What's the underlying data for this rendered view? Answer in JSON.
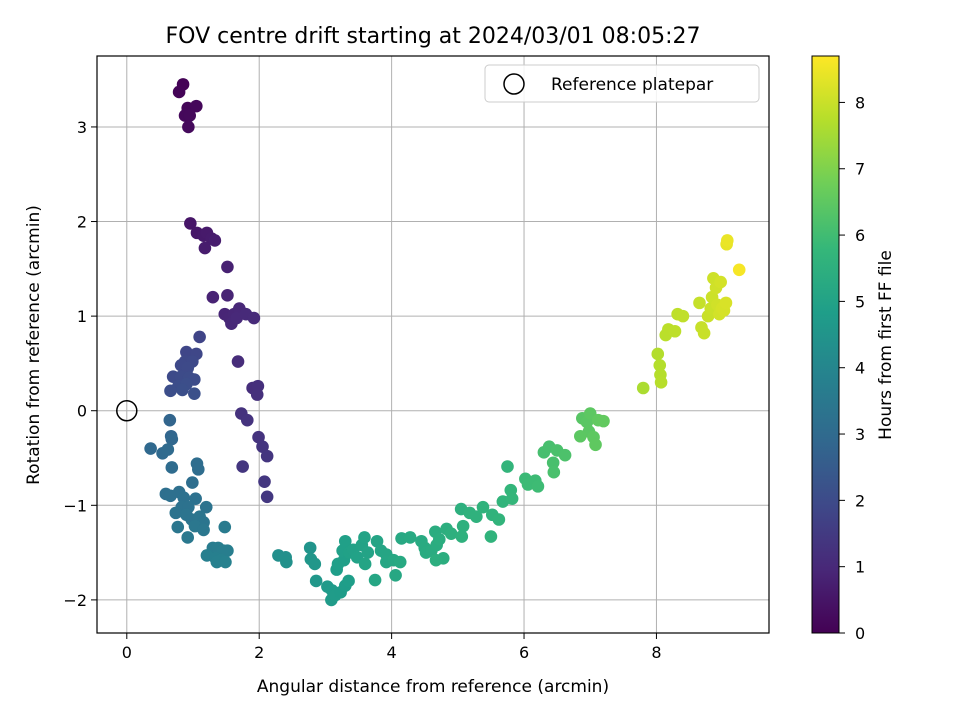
{
  "chart_data": {
    "type": "scatter",
    "title": "FOV centre drift starting at 2024/03/01 08:05:27",
    "xlabel": "Angular distance from reference (arcmin)",
    "ylabel": "Rotation from reference (arcmin)",
    "xlim": [
      -0.45,
      9.7
    ],
    "ylim": [
      -2.35,
      3.75
    ],
    "xticks": [
      "0",
      "2",
      "4",
      "6",
      "8"
    ],
    "xtick_values": [
      0,
      2,
      4,
      6,
      8
    ],
    "yticks": [
      "−2",
      "−1",
      "0",
      "1",
      "2",
      "3"
    ],
    "ytick_values": [
      -2,
      -1,
      0,
      1,
      2,
      3
    ],
    "grid": true,
    "legend": {
      "placement": "top-right",
      "label": "Reference platepar"
    },
    "reference_point": {
      "x": 0,
      "y": 0
    },
    "colormap": "viridis",
    "colorbar": {
      "label": "Hours from first FF file",
      "range": [
        0,
        8.7
      ],
      "ticks": [
        "0",
        "1",
        "2",
        "3",
        "4",
        "5",
        "6",
        "7",
        "8"
      ],
      "tick_values": [
        0,
        1,
        2,
        3,
        4,
        5,
        6,
        7,
        8
      ]
    },
    "points": [
      {
        "x": 0.85,
        "y": 3.45,
        "t": 0.05
      },
      {
        "x": 0.79,
        "y": 3.37,
        "t": 0.08
      },
      {
        "x": 0.92,
        "y": 3.2,
        "t": 0.12
      },
      {
        "x": 1.05,
        "y": 3.22,
        "t": 0.15
      },
      {
        "x": 0.88,
        "y": 3.12,
        "t": 0.18
      },
      {
        "x": 0.95,
        "y": 3.12,
        "t": 0.2
      },
      {
        "x": 0.93,
        "y": 3.0,
        "t": 0.22
      },
      {
        "x": 0.96,
        "y": 1.98,
        "t": 0.5
      },
      {
        "x": 1.06,
        "y": 1.88,
        "t": 0.55
      },
      {
        "x": 1.16,
        "y": 1.85,
        "t": 0.6
      },
      {
        "x": 1.21,
        "y": 1.88,
        "t": 0.62
      },
      {
        "x": 1.28,
        "y": 1.82,
        "t": 0.65
      },
      {
        "x": 1.18,
        "y": 1.72,
        "t": 0.68
      },
      {
        "x": 1.33,
        "y": 1.8,
        "t": 0.7
      },
      {
        "x": 1.52,
        "y": 1.52,
        "t": 0.8
      },
      {
        "x": 1.3,
        "y": 1.2,
        "t": 0.85
      },
      {
        "x": 1.52,
        "y": 1.22,
        "t": 0.88
      },
      {
        "x": 1.48,
        "y": 1.02,
        "t": 0.9
      },
      {
        "x": 1.55,
        "y": 0.98,
        "t": 0.92
      },
      {
        "x": 1.62,
        "y": 1.02,
        "t": 0.95
      },
      {
        "x": 1.7,
        "y": 1.08,
        "t": 0.97
      },
      {
        "x": 1.58,
        "y": 0.92,
        "t": 0.98
      },
      {
        "x": 1.66,
        "y": 0.98,
        "t": 1.0
      },
      {
        "x": 1.8,
        "y": 1.02,
        "t": 1.02
      },
      {
        "x": 1.92,
        "y": 0.98,
        "t": 1.05
      },
      {
        "x": 1.68,
        "y": 0.52,
        "t": 1.1
      },
      {
        "x": 1.9,
        "y": 0.24,
        "t": 1.15
      },
      {
        "x": 1.98,
        "y": 0.26,
        "t": 1.18
      },
      {
        "x": 1.97,
        "y": 0.17,
        "t": 1.2
      },
      {
        "x": 1.73,
        "y": -0.03,
        "t": 1.25
      },
      {
        "x": 1.82,
        "y": -0.1,
        "t": 1.28
      },
      {
        "x": 1.99,
        "y": -0.28,
        "t": 1.3
      },
      {
        "x": 2.05,
        "y": -0.38,
        "t": 1.33
      },
      {
        "x": 2.12,
        "y": -0.48,
        "t": 1.36
      },
      {
        "x": 1.75,
        "y": -0.59,
        "t": 1.38
      },
      {
        "x": 2.08,
        "y": -0.75,
        "t": 1.4
      },
      {
        "x": 2.12,
        "y": -0.91,
        "t": 1.42
      },
      {
        "x": 1.1,
        "y": 0.78,
        "t": 1.8
      },
      {
        "x": 0.9,
        "y": 0.62,
        "t": 1.85
      },
      {
        "x": 1.05,
        "y": 0.6,
        "t": 1.88
      },
      {
        "x": 0.88,
        "y": 0.52,
        "t": 1.9
      },
      {
        "x": 0.99,
        "y": 0.52,
        "t": 1.92
      },
      {
        "x": 0.82,
        "y": 0.48,
        "t": 1.94
      },
      {
        "x": 0.92,
        "y": 0.45,
        "t": 1.96
      },
      {
        "x": 0.7,
        "y": 0.36,
        "t": 1.98
      },
      {
        "x": 0.82,
        "y": 0.36,
        "t": 2.0
      },
      {
        "x": 0.94,
        "y": 0.35,
        "t": 2.02
      },
      {
        "x": 1.02,
        "y": 0.33,
        "t": 2.04
      },
      {
        "x": 0.78,
        "y": 0.26,
        "t": 2.06
      },
      {
        "x": 0.9,
        "y": 0.28,
        "t": 2.08
      },
      {
        "x": 0.66,
        "y": 0.21,
        "t": 2.1
      },
      {
        "x": 0.84,
        "y": 0.22,
        "t": 2.12
      },
      {
        "x": 1.02,
        "y": 0.18,
        "t": 2.14
      },
      {
        "x": 0.65,
        "y": -0.1,
        "t": 2.8
      },
      {
        "x": 0.67,
        "y": -0.27,
        "t": 2.85
      },
      {
        "x": 0.68,
        "y": -0.3,
        "t": 2.9
      },
      {
        "x": 0.36,
        "y": -0.4,
        "t": 2.95
      },
      {
        "x": 0.54,
        "y": -0.45,
        "t": 2.98
      },
      {
        "x": 0.62,
        "y": -0.41,
        "t": 3.0
      },
      {
        "x": 0.68,
        "y": -0.6,
        "t": 3.05
      },
      {
        "x": 1.06,
        "y": -0.56,
        "t": 3.08
      },
      {
        "x": 1.08,
        "y": -0.62,
        "t": 3.1
      },
      {
        "x": 0.99,
        "y": -0.76,
        "t": 3.12
      },
      {
        "x": 0.59,
        "y": -0.88,
        "t": 3.15
      },
      {
        "x": 0.66,
        "y": -0.9,
        "t": 3.18
      },
      {
        "x": 0.79,
        "y": -0.86,
        "t": 3.2
      },
      {
        "x": 0.86,
        "y": -0.92,
        "t": 3.22
      },
      {
        "x": 1.04,
        "y": -0.93,
        "t": 3.24
      },
      {
        "x": 0.83,
        "y": -1.02,
        "t": 3.26
      },
      {
        "x": 0.93,
        "y": -1.02,
        "t": 3.28
      },
      {
        "x": 1.2,
        "y": -1.02,
        "t": 3.3
      },
      {
        "x": 0.74,
        "y": -1.08,
        "t": 3.32
      },
      {
        "x": 0.9,
        "y": -1.1,
        "t": 3.34
      },
      {
        "x": 0.98,
        "y": -1.15,
        "t": 3.36
      },
      {
        "x": 1.1,
        "y": -1.12,
        "t": 3.38
      },
      {
        "x": 1.16,
        "y": -1.18,
        "t": 3.4
      },
      {
        "x": 0.77,
        "y": -1.23,
        "t": 3.42
      },
      {
        "x": 1.03,
        "y": -1.22,
        "t": 3.44
      },
      {
        "x": 1.16,
        "y": -1.26,
        "t": 3.46
      },
      {
        "x": 0.92,
        "y": -1.34,
        "t": 3.48
      },
      {
        "x": 1.48,
        "y": -1.23,
        "t": 3.6
      },
      {
        "x": 1.3,
        "y": -1.45,
        "t": 3.65
      },
      {
        "x": 1.38,
        "y": -1.45,
        "t": 3.68
      },
      {
        "x": 1.46,
        "y": -1.48,
        "t": 3.7
      },
      {
        "x": 1.52,
        "y": -1.48,
        "t": 3.72
      },
      {
        "x": 1.21,
        "y": -1.53,
        "t": 3.74
      },
      {
        "x": 1.34,
        "y": -1.56,
        "t": 3.76
      },
      {
        "x": 1.42,
        "y": -1.58,
        "t": 3.78
      },
      {
        "x": 1.36,
        "y": -1.6,
        "t": 3.8
      },
      {
        "x": 1.49,
        "y": -1.6,
        "t": 3.82
      },
      {
        "x": 2.29,
        "y": -1.53,
        "t": 4.3
      },
      {
        "x": 2.4,
        "y": -1.55,
        "t": 4.35
      },
      {
        "x": 2.41,
        "y": -1.6,
        "t": 4.38
      },
      {
        "x": 2.77,
        "y": -1.45,
        "t": 4.5
      },
      {
        "x": 2.78,
        "y": -1.57,
        "t": 4.55
      },
      {
        "x": 2.84,
        "y": -1.62,
        "t": 4.58
      },
      {
        "x": 2.86,
        "y": -1.8,
        "t": 4.6
      },
      {
        "x": 3.03,
        "y": -1.86,
        "t": 4.7
      },
      {
        "x": 3.1,
        "y": -1.9,
        "t": 4.72
      },
      {
        "x": 3.09,
        "y": -2.0,
        "t": 4.74
      },
      {
        "x": 3.15,
        "y": -1.95,
        "t": 4.76
      },
      {
        "x": 3.23,
        "y": -1.92,
        "t": 4.78
      },
      {
        "x": 3.3,
        "y": -1.85,
        "t": 4.8
      },
      {
        "x": 3.35,
        "y": -1.8,
        "t": 4.82
      },
      {
        "x": 3.17,
        "y": -1.68,
        "t": 4.84
      },
      {
        "x": 3.19,
        "y": -1.62,
        "t": 4.86
      },
      {
        "x": 3.28,
        "y": -1.58,
        "t": 4.88
      },
      {
        "x": 3.26,
        "y": -1.48,
        "t": 4.9
      },
      {
        "x": 3.3,
        "y": -1.38,
        "t": 4.92
      },
      {
        "x": 3.36,
        "y": -1.5,
        "t": 4.94
      },
      {
        "x": 3.42,
        "y": -1.47,
        "t": 4.96
      },
      {
        "x": 3.48,
        "y": -1.55,
        "t": 4.98
      },
      {
        "x": 3.55,
        "y": -1.42,
        "t": 5.0
      },
      {
        "x": 3.59,
        "y": -1.34,
        "t": 5.02
      },
      {
        "x": 3.64,
        "y": -1.5,
        "t": 5.04
      },
      {
        "x": 3.6,
        "y": -1.62,
        "t": 5.06
      },
      {
        "x": 3.78,
        "y": -1.38,
        "t": 5.08
      },
      {
        "x": 3.84,
        "y": -1.48,
        "t": 5.1
      },
      {
        "x": 3.92,
        "y": -1.52,
        "t": 5.12
      },
      {
        "x": 3.75,
        "y": -1.79,
        "t": 5.14
      },
      {
        "x": 3.92,
        "y": -1.6,
        "t": 5.16
      },
      {
        "x": 4.03,
        "y": -1.58,
        "t": 5.18
      },
      {
        "x": 4.06,
        "y": -1.74,
        "t": 5.2
      },
      {
        "x": 4.15,
        "y": -1.35,
        "t": 5.22
      },
      {
        "x": 4.13,
        "y": -1.6,
        "t": 5.24
      },
      {
        "x": 4.28,
        "y": -1.34,
        "t": 5.26
      },
      {
        "x": 4.45,
        "y": -1.38,
        "t": 5.28
      },
      {
        "x": 4.5,
        "y": -1.45,
        "t": 5.3
      },
      {
        "x": 4.52,
        "y": -1.5,
        "t": 5.32
      },
      {
        "x": 4.6,
        "y": -1.48,
        "t": 5.34
      },
      {
        "x": 4.68,
        "y": -1.42,
        "t": 5.36
      },
      {
        "x": 4.66,
        "y": -1.28,
        "t": 5.38
      },
      {
        "x": 4.72,
        "y": -1.36,
        "t": 5.4
      },
      {
        "x": 4.78,
        "y": -1.56,
        "t": 5.42
      },
      {
        "x": 4.67,
        "y": -1.58,
        "t": 5.44
      },
      {
        "x": 4.83,
        "y": -1.25,
        "t": 5.46
      },
      {
        "x": 4.9,
        "y": -1.3,
        "t": 5.48
      },
      {
        "x": 5.05,
        "y": -1.04,
        "t": 5.5
      },
      {
        "x": 5.08,
        "y": -1.22,
        "t": 5.52
      },
      {
        "x": 5.06,
        "y": -1.33,
        "t": 5.54
      },
      {
        "x": 5.18,
        "y": -1.08,
        "t": 5.56
      },
      {
        "x": 5.28,
        "y": -1.12,
        "t": 5.58
      },
      {
        "x": 5.38,
        "y": -1.02,
        "t": 5.6
      },
      {
        "x": 5.52,
        "y": -1.1,
        "t": 5.62
      },
      {
        "x": 5.5,
        "y": -1.33,
        "t": 5.64
      },
      {
        "x": 5.62,
        "y": -1.15,
        "t": 5.66
      },
      {
        "x": 5.68,
        "y": -0.96,
        "t": 5.68
      },
      {
        "x": 5.75,
        "y": -0.59,
        "t": 5.7
      },
      {
        "x": 5.8,
        "y": -0.84,
        "t": 5.72
      },
      {
        "x": 5.82,
        "y": -0.93,
        "t": 5.74
      },
      {
        "x": 6.02,
        "y": -0.72,
        "t": 5.9
      },
      {
        "x": 6.06,
        "y": -0.78,
        "t": 5.92
      },
      {
        "x": 6.17,
        "y": -0.74,
        "t": 5.94
      },
      {
        "x": 6.21,
        "y": -0.8,
        "t": 5.96
      },
      {
        "x": 6.3,
        "y": -0.44,
        "t": 6.1
      },
      {
        "x": 6.38,
        "y": -0.38,
        "t": 6.12
      },
      {
        "x": 6.44,
        "y": -0.55,
        "t": 6.14
      },
      {
        "x": 6.45,
        "y": -0.65,
        "t": 6.16
      },
      {
        "x": 6.5,
        "y": -0.42,
        "t": 6.18
      },
      {
        "x": 6.62,
        "y": -0.47,
        "t": 6.2
      },
      {
        "x": 6.88,
        "y": -0.08,
        "t": 6.4
      },
      {
        "x": 6.95,
        "y": -0.12,
        "t": 6.42
      },
      {
        "x": 6.98,
        "y": -0.22,
        "t": 6.44
      },
      {
        "x": 6.85,
        "y": -0.27,
        "t": 6.46
      },
      {
        "x": 7.0,
        "y": -0.03,
        "t": 6.48
      },
      {
        "x": 7.05,
        "y": -0.28,
        "t": 6.5
      },
      {
        "x": 7.08,
        "y": -0.36,
        "t": 6.52
      },
      {
        "x": 7.12,
        "y": -0.1,
        "t": 6.54
      },
      {
        "x": 7.2,
        "y": -0.11,
        "t": 6.56
      },
      {
        "x": 7.8,
        "y": 0.24,
        "t": 7.6
      },
      {
        "x": 8.02,
        "y": 0.6,
        "t": 7.7
      },
      {
        "x": 8.05,
        "y": 0.48,
        "t": 7.72
      },
      {
        "x": 8.06,
        "y": 0.38,
        "t": 7.74
      },
      {
        "x": 8.07,
        "y": 0.3,
        "t": 7.76
      },
      {
        "x": 8.14,
        "y": 0.8,
        "t": 7.8
      },
      {
        "x": 8.18,
        "y": 0.86,
        "t": 7.82
      },
      {
        "x": 8.28,
        "y": 0.84,
        "t": 7.84
      },
      {
        "x": 8.32,
        "y": 1.02,
        "t": 7.86
      },
      {
        "x": 8.4,
        "y": 1.0,
        "t": 7.88
      },
      {
        "x": 8.65,
        "y": 1.14,
        "t": 7.95
      },
      {
        "x": 8.68,
        "y": 0.88,
        "t": 7.97
      },
      {
        "x": 8.72,
        "y": 0.82,
        "t": 7.99
      },
      {
        "x": 8.78,
        "y": 1.0,
        "t": 8.0
      },
      {
        "x": 8.82,
        "y": 1.08,
        "t": 8.02
      },
      {
        "x": 8.84,
        "y": 1.2,
        "t": 8.04
      },
      {
        "x": 8.86,
        "y": 1.4,
        "t": 8.06
      },
      {
        "x": 8.9,
        "y": 1.3,
        "t": 8.08
      },
      {
        "x": 8.92,
        "y": 1.12,
        "t": 8.1
      },
      {
        "x": 8.95,
        "y": 1.02,
        "t": 8.12
      },
      {
        "x": 8.97,
        "y": 1.36,
        "t": 8.14
      },
      {
        "x": 8.99,
        "y": 1.08,
        "t": 8.16
      },
      {
        "x": 9.02,
        "y": 1.06,
        "t": 8.18
      },
      {
        "x": 9.05,
        "y": 1.14,
        "t": 8.2
      },
      {
        "x": 9.06,
        "y": 1.76,
        "t": 8.4
      },
      {
        "x": 9.07,
        "y": 1.8,
        "t": 8.45
      },
      {
        "x": 9.25,
        "y": 1.49,
        "t": 8.6
      }
    ]
  }
}
